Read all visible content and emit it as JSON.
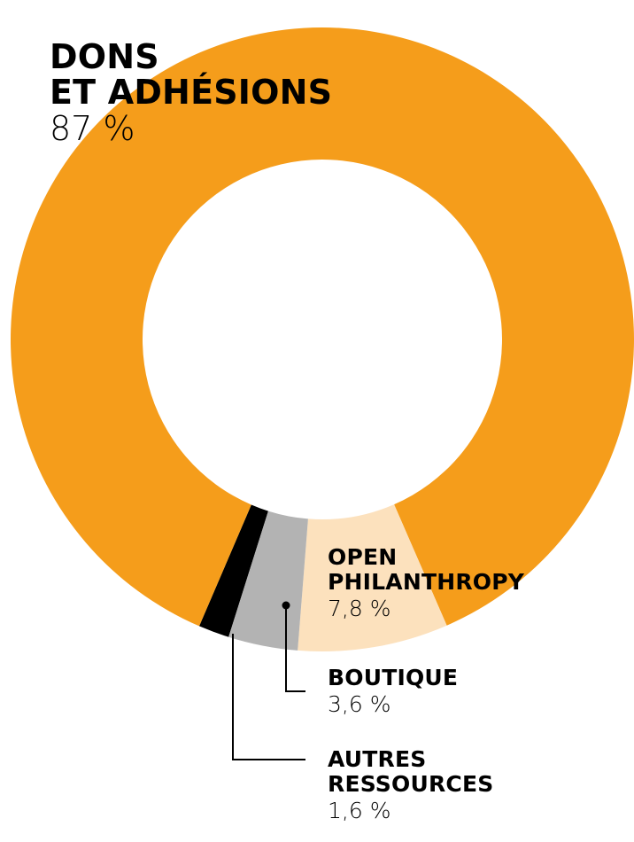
{
  "chart_data": {
    "type": "pie",
    "categories": [
      "DONS ET ADHÉSIONS",
      "OPEN PHILANTHROPY",
      "BOUTIQUE",
      "AUTRES RESSOURCES"
    ],
    "values": [
      87,
      7.8,
      3.6,
      1.6
    ],
    "value_labels": [
      "87 %",
      "7,8 %",
      "3,6 %",
      "1,6 %"
    ],
    "colors": [
      "#F59D1B",
      "#FCE1BD",
      "#B3B3B3",
      "#000000"
    ],
    "donut": true,
    "background": "#FFFFFF"
  },
  "labels": {
    "dons": {
      "line1": "DONS",
      "line2": "ET ADHÉSIONS",
      "pct": "87 %"
    },
    "open": {
      "line1": "OPEN",
      "line2": "PHILANTHROPY",
      "pct": "7,8 %"
    },
    "boutique": {
      "line1": "BOUTIQUE",
      "pct": "3,6 %"
    },
    "autres": {
      "line1": "AUTRES",
      "line2": "RESSOURCES",
      "pct": "1,6 %"
    }
  }
}
